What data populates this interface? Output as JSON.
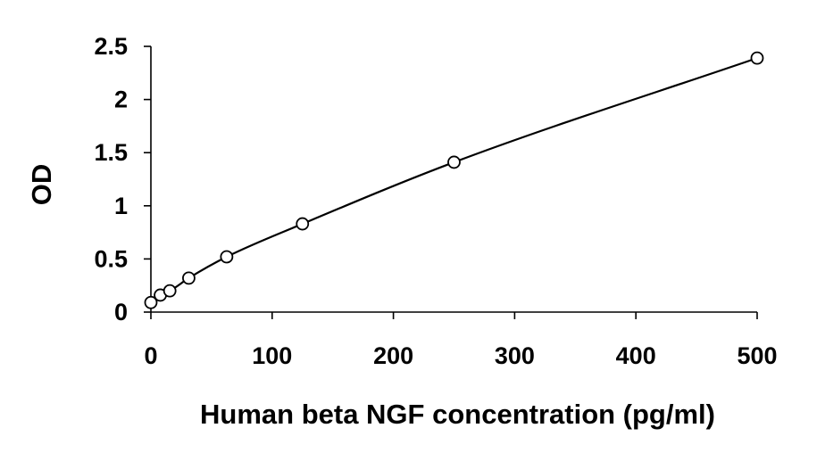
{
  "chart_data": {
    "type": "scatter",
    "title": "",
    "xlabel": "Human beta NGF concentration (pg/ml)",
    "ylabel": "OD",
    "xlim": [
      0,
      500
    ],
    "ylim": [
      0,
      2.5
    ],
    "xticks": [
      0,
      100,
      200,
      300,
      400,
      500
    ],
    "yticks": [
      0,
      0.5,
      1,
      1.5,
      2,
      2.5
    ],
    "xtick_labels": [
      "0",
      "100",
      "200",
      "300",
      "400",
      "500"
    ],
    "ytick_labels": [
      "0",
      "0.5",
      "1",
      "1.5",
      "2",
      "2.5"
    ],
    "grid": false,
    "legend": "none",
    "series": [
      {
        "marker": "open-circle",
        "fit": "smooth-curve",
        "x": [
          0,
          7.8,
          15.6,
          31.25,
          62.5,
          125,
          250,
          500
        ],
        "y": [
          0.09,
          0.16,
          0.2,
          0.32,
          0.52,
          0.83,
          1.41,
          2.39
        ]
      }
    ]
  }
}
